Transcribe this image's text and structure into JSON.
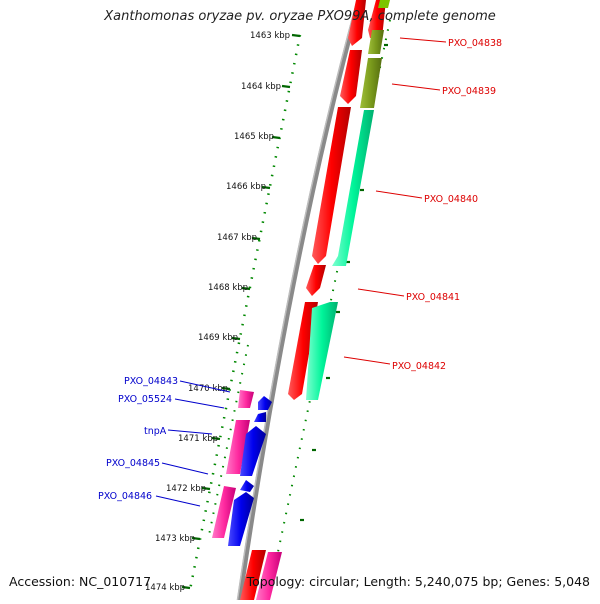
{
  "title": "Xanthomonas oryzae pv. oryzae PXO99A, complete genome",
  "accession": "Accession: NC_010717",
  "topology": "Topology: circular; Length: 5,240,075 bp; Genes: 5,048",
  "ticks": [
    "1463 kbp",
    "1464 kbp",
    "1465 kbp",
    "1466 kbp",
    "1467 kbp",
    "1468 kbp",
    "1469 kbp",
    "1470 kbp",
    "1471 kbp",
    "1472 kbp",
    "1473 kbp",
    "1474 kbp"
  ],
  "labels_right": [
    "PXO_04838",
    "PXO_04839",
    "PXO_04840",
    "PXO_04841",
    "PXO_04842"
  ],
  "labels_left": [
    "PXO_04843",
    "PXO_05524",
    "tnpA",
    "PXO_04845",
    "PXO_04846"
  ],
  "colors": {
    "forward_red": "#ff0000",
    "reverse_green": "#00ffa0",
    "olive": "#7a9a1c",
    "magenta": "#ff2aa0",
    "blue": "#0000ee",
    "tick_green": "#006600",
    "label_red": "#dd0000",
    "label_blue": "#0000cc",
    "backbone": "#888888"
  }
}
